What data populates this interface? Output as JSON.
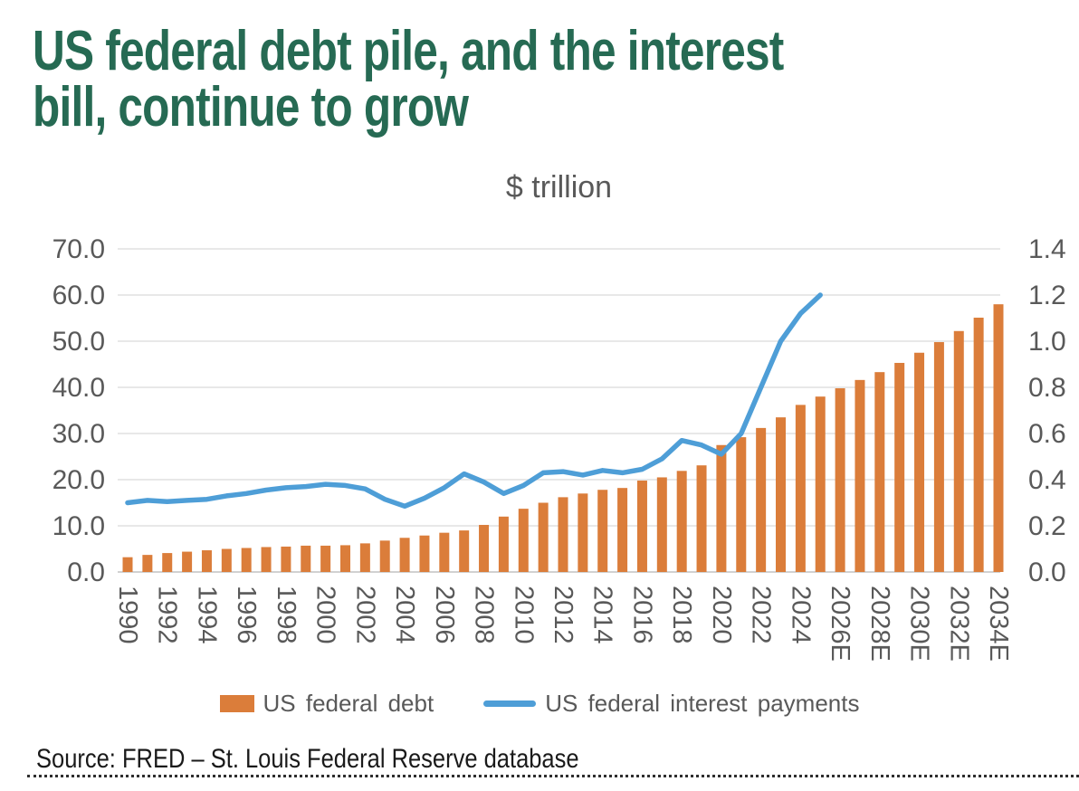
{
  "header": {
    "title_line1": "US federal debt pile, and the interest",
    "title_line2": "bill, continue to grow",
    "title_color": "#266A53"
  },
  "chart": {
    "subtitle": "$ trillion"
  },
  "chart_data": {
    "type": "bar",
    "title": "$ trillion",
    "categories": [
      "1990",
      "1991",
      "1992",
      "1993",
      "1994",
      "1995",
      "1996",
      "1997",
      "1998",
      "1999",
      "2000",
      "2001",
      "2002",
      "2003",
      "2004",
      "2005",
      "2006",
      "2007",
      "2008",
      "2009",
      "2010",
      "2011",
      "2012",
      "2013",
      "2014",
      "2015",
      "2016",
      "2017",
      "2018",
      "2019",
      "2020",
      "2021",
      "2022",
      "2023",
      "2024",
      "2025E",
      "2026E",
      "2027E",
      "2028E",
      "2029E",
      "2030E",
      "2031E",
      "2032E",
      "2033E",
      "2034E"
    ],
    "x_tick_labels": [
      "1990",
      "1992",
      "1994",
      "1996",
      "1998",
      "2000",
      "2002",
      "2004",
      "2006",
      "2008",
      "2010",
      "2012",
      "2014",
      "2016",
      "2018",
      "2020",
      "2022",
      "2024",
      "2026E",
      "2028E",
      "2030E",
      "2032E",
      "2034E"
    ],
    "series": [
      {
        "name": "US federal debt",
        "type": "bar",
        "axis": "left",
        "color": "#DB7D3A",
        "values": [
          3.2,
          3.7,
          4.1,
          4.4,
          4.7,
          5.0,
          5.2,
          5.4,
          5.5,
          5.7,
          5.7,
          5.8,
          6.2,
          6.8,
          7.4,
          7.9,
          8.5,
          9.0,
          10.2,
          12.0,
          13.7,
          15.0,
          16.2,
          17.0,
          17.8,
          18.2,
          19.8,
          20.5,
          21.9,
          23.1,
          27.5,
          29.2,
          31.2,
          33.5,
          36.2,
          38.0,
          39.8,
          41.6,
          43.3,
          45.3,
          47.5,
          49.8,
          52.2,
          55.1,
          58.0
        ]
      },
      {
        "name": "US federal interest payments",
        "type": "line",
        "axis": "right",
        "color": "#4E9ED7",
        "values": [
          0.3,
          0.31,
          0.305,
          0.31,
          0.315,
          0.33,
          0.34,
          0.355,
          0.365,
          0.37,
          0.38,
          0.375,
          0.36,
          0.315,
          0.285,
          0.32,
          0.365,
          0.425,
          0.39,
          0.34,
          0.375,
          0.43,
          0.435,
          0.42,
          0.44,
          0.43,
          0.445,
          0.49,
          0.57,
          0.55,
          0.51,
          0.6,
          0.8,
          1.0,
          1.12,
          1.2
        ]
      }
    ],
    "left_axis": {
      "min": 0,
      "max": 70,
      "step": 10,
      "tick_labels": [
        "70.0",
        "60.0",
        "50.0",
        "40.0",
        "30.0",
        "20.0",
        "10.0",
        "0.0"
      ]
    },
    "right_axis": {
      "min": 0,
      "max": 1.4,
      "step": 0.2,
      "tick_labels": [
        "1.4",
        "1.2",
        "1.0",
        "0.8",
        "0.6",
        "0.4",
        "0.2",
        "0.0"
      ]
    },
    "grid": true,
    "legend_position": "bottom",
    "grid_color": "#D9D9D9",
    "axis_label_color": "#595959"
  },
  "legend": {
    "items": [
      {
        "label": "US federal debt",
        "color": "#DB7D3A",
        "swatch": "bar"
      },
      {
        "label": "US federal interest payments",
        "color": "#4E9ED7",
        "swatch": "line"
      }
    ]
  },
  "footer": {
    "source": "Source: FRED – St. Louis Federal Reserve database"
  }
}
